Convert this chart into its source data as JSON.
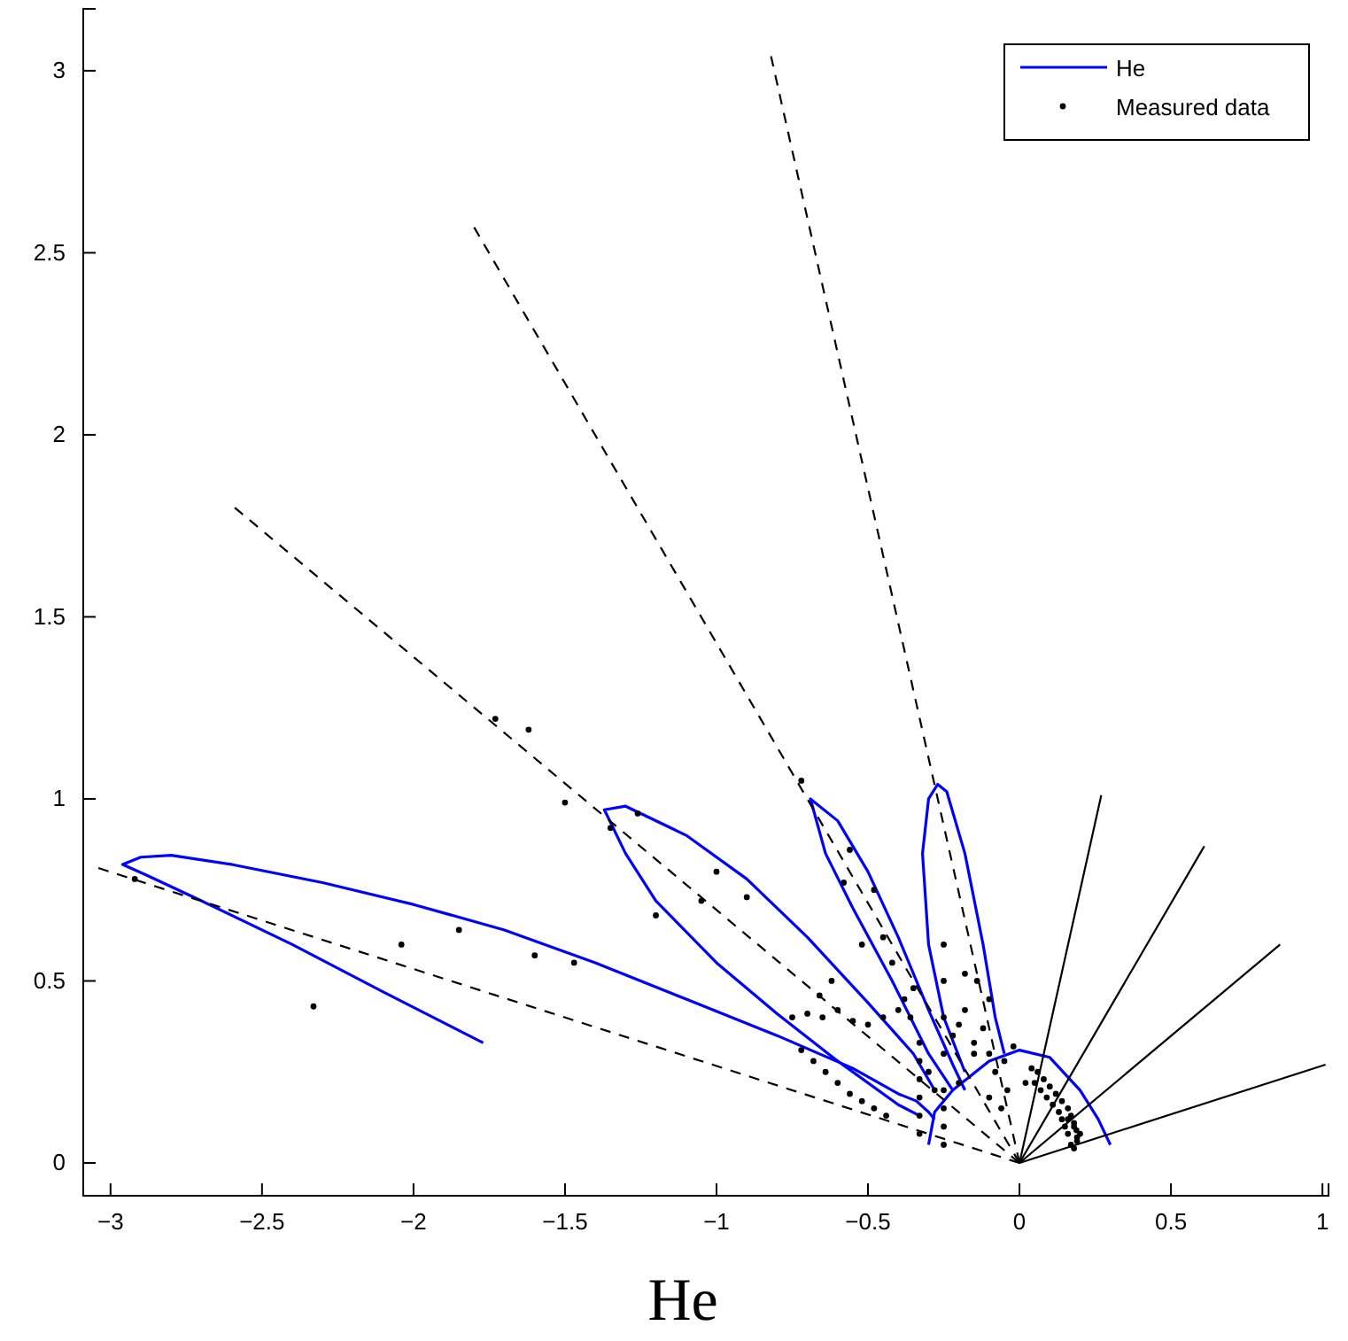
{
  "chart_data": {
    "type": "line",
    "xlabel": "He",
    "xlim": [
      -3.09,
      1.02
    ],
    "ylim": [
      -0.09,
      3.17
    ],
    "xticks": [
      -3,
      -2.5,
      -2,
      -1.5,
      -1,
      -0.5,
      0,
      0.5,
      1
    ],
    "yticks": [
      0,
      0.5,
      1,
      1.5,
      2,
      2.5,
      3
    ],
    "grid": false,
    "legend": "top right",
    "series": [
      {
        "name": "He",
        "color": "#0000ff",
        "line_style": "solid",
        "x": [
          -1.77,
          -2.1,
          -2.4,
          -2.7,
          -2.88,
          -2.96,
          -2.9,
          -2.8,
          -2.6,
          -2.3,
          -2.0,
          -1.7,
          -1.4,
          -1.1,
          -0.8,
          -0.55,
          -0.4,
          -0.34,
          -0.3,
          -0.28,
          null,
          -0.33,
          -0.4,
          -0.6,
          -0.8,
          -1.0,
          -1.2,
          -1.3,
          -1.37,
          -1.3,
          -1.1,
          -0.9,
          -0.7,
          -0.5,
          -0.35,
          -0.28,
          null,
          -0.22,
          -0.3,
          -0.42,
          -0.55,
          -0.64,
          -0.69,
          -0.6,
          -0.5,
          -0.4,
          -0.3,
          -0.22,
          -0.18,
          null,
          -0.18,
          -0.25,
          -0.3,
          -0.32,
          -0.3,
          -0.27,
          -0.24,
          -0.18,
          -0.12,
          -0.08,
          -0.05,
          null,
          -0.3,
          -0.28,
          -0.22,
          -0.1,
          0,
          0.1,
          0.2,
          0.26,
          0.3
        ],
        "values": [
          0.33,
          0.47,
          0.6,
          0.72,
          0.79,
          0.82,
          0.84,
          0.845,
          0.82,
          0.77,
          0.71,
          0.64,
          0.55,
          0.45,
          0.35,
          0.26,
          0.19,
          0.17,
          0.14,
          0.12,
          null,
          0.13,
          0.16,
          0.28,
          0.41,
          0.55,
          0.72,
          0.85,
          0.97,
          0.98,
          0.9,
          0.78,
          0.62,
          0.44,
          0.3,
          0.2,
          null,
          0.2,
          0.3,
          0.5,
          0.7,
          0.85,
          1.0,
          0.94,
          0.8,
          0.62,
          0.42,
          0.27,
          0.2,
          null,
          0.25,
          0.4,
          0.6,
          0.85,
          1.0,
          1.04,
          1.02,
          0.85,
          0.6,
          0.4,
          0.3,
          null,
          0.05,
          0.14,
          0.2,
          0.28,
          0.31,
          0.29,
          0.2,
          0.12,
          0.05
        ]
      },
      {
        "color": "#000000",
        "line_style": "dashed",
        "x": [
          0,
          -3.04
        ],
        "values": [
          0,
          0.81
        ]
      },
      {
        "color": "#000000",
        "line_style": "dashed",
        "x": [
          0,
          -2.59
        ],
        "values": [
          0,
          1.8
        ]
      },
      {
        "color": "#000000",
        "line_style": "dashed",
        "x": [
          0,
          -1.8
        ],
        "values": [
          0,
          2.57
        ]
      },
      {
        "color": "#000000",
        "line_style": "dashed",
        "x": [
          0,
          -0.82
        ],
        "values": [
          0,
          3.04
        ]
      },
      {
        "color": "#000000",
        "line_style": "solid",
        "x": [
          0,
          0.27
        ],
        "values": [
          0,
          1.01
        ]
      },
      {
        "color": "#000000",
        "line_style": "solid",
        "x": [
          0,
          0.61
        ],
        "values": [
          0,
          0.87
        ]
      },
      {
        "color": "#000000",
        "line_style": "solid",
        "x": [
          0,
          0.86
        ],
        "values": [
          0,
          0.6
        ]
      },
      {
        "color": "#000000",
        "line_style": "solid",
        "x": [
          0,
          1.01
        ],
        "values": [
          0,
          0.27
        ]
      },
      {
        "name": "Measured data",
        "type": "scatter",
        "color": "#000000",
        "marker": "circle",
        "x": [
          -2.92,
          -2.33,
          -2.04,
          -1.85,
          -1.6,
          -1.47,
          -1.5,
          -1.26,
          -1.35,
          -1.0,
          -0.9,
          -1.73,
          -1.62,
          -1.2,
          -1.05,
          -0.72,
          -0.56,
          -0.58,
          -0.48,
          -0.52,
          -0.45,
          -0.42,
          -0.62,
          -0.66,
          -0.38,
          -0.35,
          -0.75,
          -0.7,
          -0.65,
          -0.6,
          -0.55,
          -0.5,
          -0.45,
          -0.4,
          -0.36,
          -0.72,
          -0.68,
          -0.64,
          -0.6,
          -0.56,
          -0.52,
          -0.48,
          -0.44,
          -0.33,
          -0.33,
          -0.33,
          -0.33,
          -0.33,
          -0.33,
          -0.25,
          -0.25,
          -0.25,
          -0.25,
          -0.25,
          -0.25,
          -0.25,
          -0.25,
          -0.22,
          -0.2,
          -0.18,
          -0.15,
          -0.12,
          -0.1,
          -0.08,
          -0.05,
          -0.02,
          -0.3,
          -0.28,
          -0.2,
          -0.15,
          -0.1,
          0.19,
          0.188,
          0.18,
          0.17,
          0.16,
          0.14,
          0.12,
          0.1,
          0.08,
          0.06,
          0.17,
          0.16,
          0.15,
          0.14,
          0.13,
          0.11,
          0.09,
          0.07,
          0.05,
          0.18,
          0.19,
          0.2,
          0.18,
          0.16,
          -0.06,
          -0.04,
          0.02,
          0.04,
          -0.1,
          -0.14,
          -0.18
        ],
        "values": [
          0.78,
          0.43,
          0.6,
          0.64,
          0.57,
          0.55,
          0.99,
          0.96,
          0.92,
          0.8,
          0.73,
          1.22,
          1.19,
          0.68,
          0.72,
          1.05,
          0.86,
          0.77,
          0.75,
          0.6,
          0.62,
          0.55,
          0.5,
          0.46,
          0.45,
          0.48,
          0.4,
          0.41,
          0.4,
          0.42,
          0.39,
          0.38,
          0.4,
          0.42,
          0.4,
          0.31,
          0.28,
          0.25,
          0.22,
          0.19,
          0.17,
          0.15,
          0.13,
          0.08,
          0.13,
          0.18,
          0.23,
          0.28,
          0.33,
          0.05,
          0.1,
          0.15,
          0.2,
          0.3,
          0.4,
          0.5,
          0.6,
          0.35,
          0.38,
          0.42,
          0.33,
          0.37,
          0.3,
          0.25,
          0.28,
          0.32,
          0.25,
          0.2,
          0.22,
          0.3,
          0.18,
          0.07,
          0.09,
          0.11,
          0.13,
          0.15,
          0.17,
          0.19,
          0.21,
          0.23,
          0.25,
          0.05,
          0.08,
          0.1,
          0.12,
          0.14,
          0.16,
          0.18,
          0.2,
          0.22,
          0.04,
          0.06,
          0.08,
          0.1,
          0.12,
          0.15,
          0.2,
          0.22,
          0.26,
          0.45,
          0.5,
          0.52
        ]
      }
    ]
  }
}
